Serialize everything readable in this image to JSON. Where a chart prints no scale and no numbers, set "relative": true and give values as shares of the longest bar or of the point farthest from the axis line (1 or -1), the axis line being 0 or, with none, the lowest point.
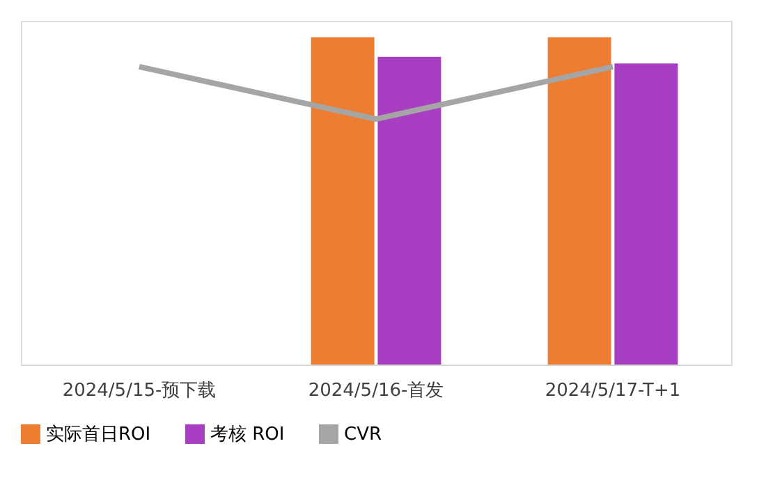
{
  "chart_data": {
    "type": "bar",
    "relative": true,
    "categories": [
      "2024/5/15-预下载",
      "2024/5/16-首发",
      "2024/5/17-T+1"
    ],
    "series": [
      {
        "name": "实际首日ROI",
        "color": "#ed7d31",
        "values": [
          null,
          1,
          1
        ]
      },
      {
        "name": "考核 ROI",
        "color": "#a83fc2",
        "values": [
          null,
          0.94,
          0.92
        ]
      },
      {
        "name": "CVR",
        "color": "#a5a5a5",
        "type": "line",
        "values": [
          0.91,
          0.75,
          0.91
        ]
      }
    ],
    "legend": "bottom"
  }
}
